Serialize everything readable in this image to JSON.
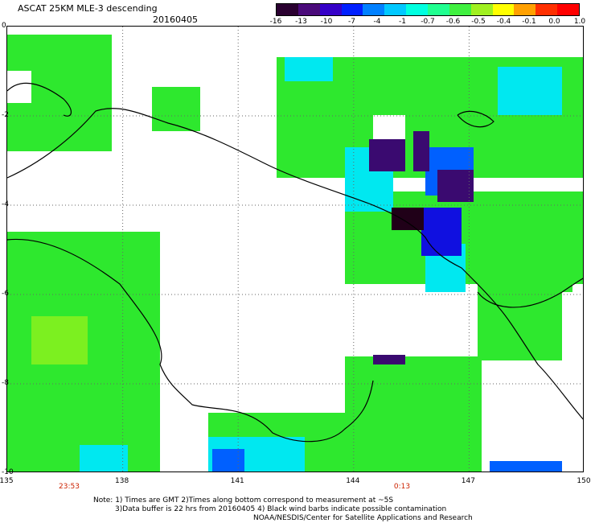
{
  "header": {
    "title": "ASCAT 25KM MLE-3 descending",
    "date": "20160405"
  },
  "colorbar": {
    "labels": [
      "-16",
      "-13",
      "-10",
      "-7",
      "-4",
      "-1",
      "-0.7",
      "-0.6",
      "-0.5",
      "-0.4",
      "-0.1",
      "0.0",
      "1.0"
    ],
    "colors": [
      "#2a0030",
      "#4a0a7a",
      "#3500c8",
      "#0020ff",
      "#0080ff",
      "#00c8ff",
      "#00ffe0",
      "#20ff90",
      "#40f040",
      "#a0f020",
      "#ffff00",
      "#ffa000",
      "#ff3000",
      "#ff0000"
    ]
  },
  "axes": {
    "lat_labels": [
      "0",
      "-2",
      "-4",
      "-6",
      "-8",
      "-10"
    ],
    "lon_labels": [
      "135",
      "138",
      "141",
      "144",
      "147",
      "150"
    ]
  },
  "times": [
    "23:53",
    "0:13"
  ],
  "notes": {
    "line1": "Note: 1) Times are GMT 2)Times along bottom correspond to measurement at ~5S",
    "line2": "3)Data buffer is 22 hrs from 20160405 4) Black wind barbs indicate possible contamination",
    "line3": "NOAA/NESDIS/Center for Satellite Applications and Research"
  },
  "map_colors": {
    "green": "#2ee82e",
    "lime": "#7cf020",
    "cyan": "#00e8f0",
    "blue": "#0060ff",
    "deepblue": "#1010e0",
    "purple": "#3a0a70",
    "dark": "#200018",
    "coast": "#000000",
    "grid": "#666666"
  }
}
